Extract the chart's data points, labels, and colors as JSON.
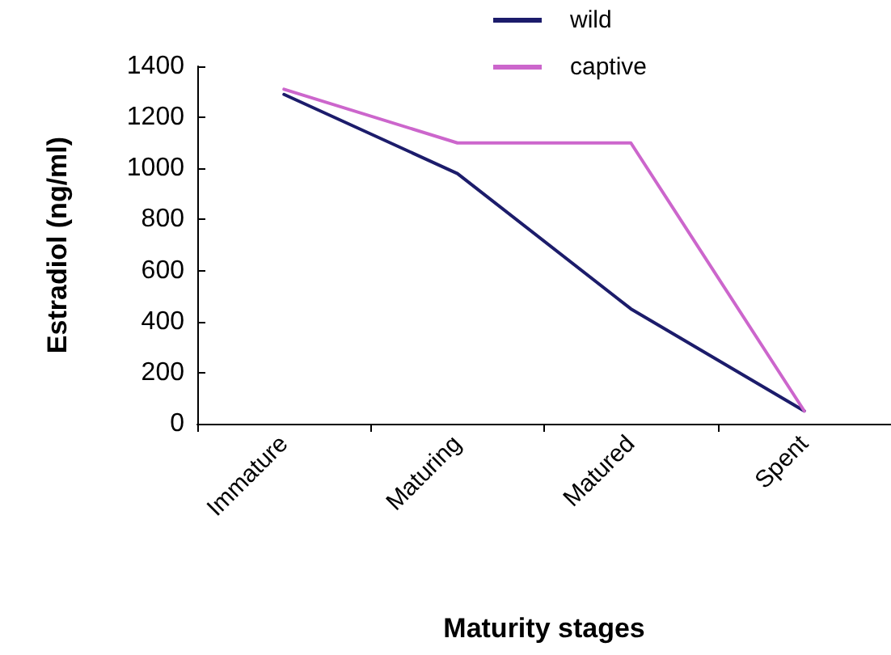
{
  "chart_data": {
    "type": "line",
    "xlabel": "Maturity stages",
    "ylabel": "Estradiol (ng/ml)",
    "categories": [
      "Immature",
      "Maturing",
      "Matured",
      "Spent"
    ],
    "series": [
      {
        "name": "wild",
        "color": "#1c1c6b",
        "values": [
          1290,
          980,
          450,
          50
        ]
      },
      {
        "name": "captive",
        "color": "#cc66cc",
        "values": [
          1310,
          1100,
          1100,
          50
        ]
      }
    ],
    "ylim": [
      0,
      1400
    ],
    "yticks": [
      0,
      200,
      400,
      600,
      800,
      1000,
      1200,
      1400
    ],
    "grid": false,
    "legend": "top",
    "marker": "none",
    "line_style": "solid"
  }
}
